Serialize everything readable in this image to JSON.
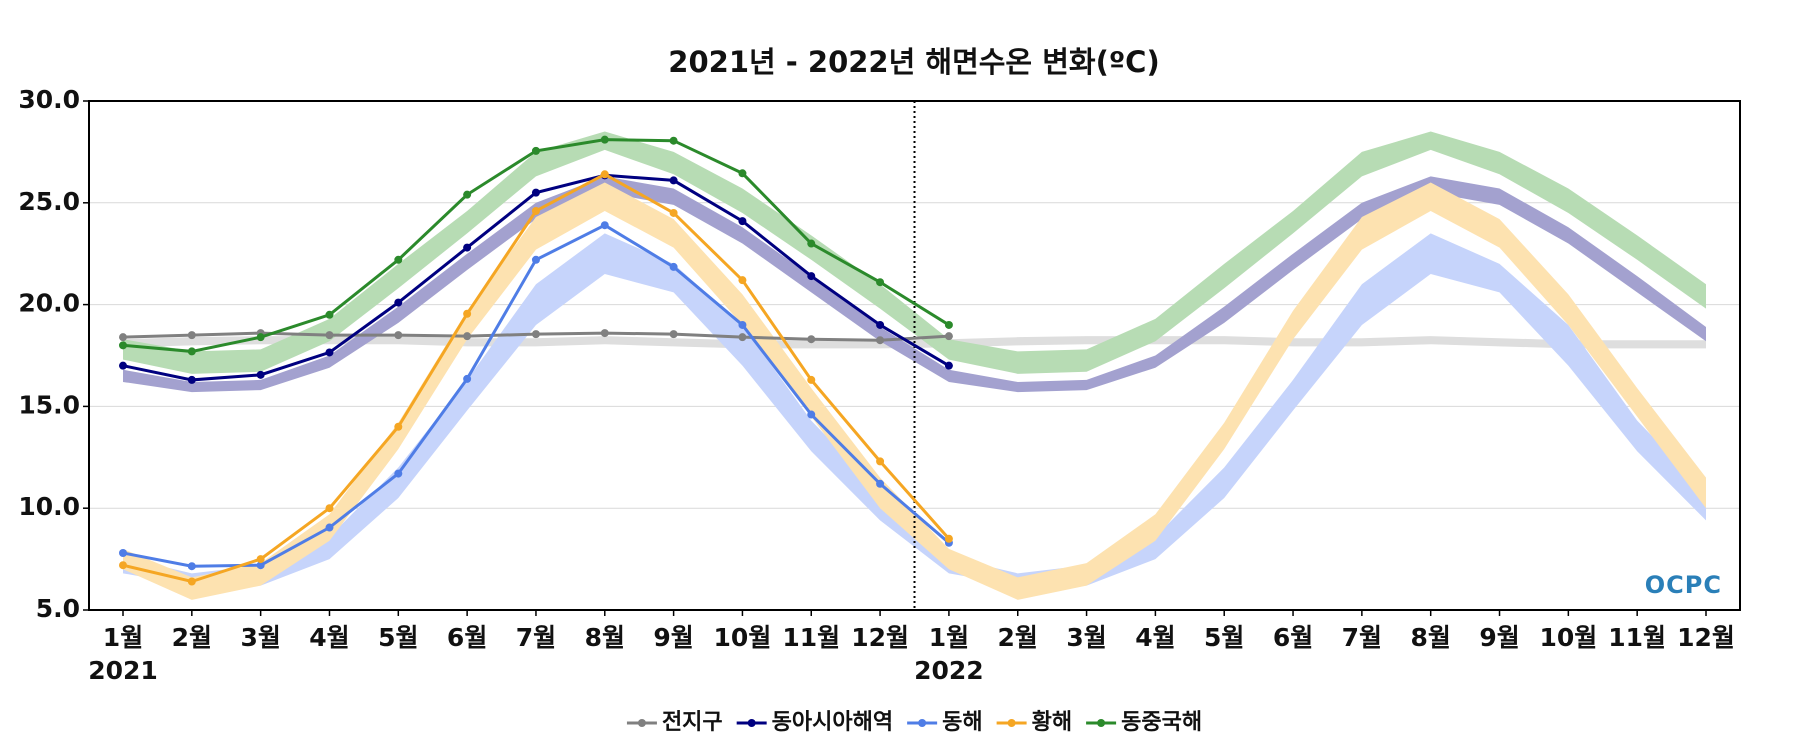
{
  "chart_data": {
    "type": "line",
    "title": "2021년 - 2022년 해면수온 변화(ºC)",
    "logo": "OCPC",
    "categories": [
      "1월",
      "2월",
      "3월",
      "4월",
      "5월",
      "6월",
      "7월",
      "8월",
      "9월",
      "10월",
      "11월",
      "12월",
      "1월",
      "2월",
      "3월",
      "4월",
      "5월",
      "6월",
      "7월",
      "8월",
      "9월",
      "10월",
      "11월",
      "12월"
    ],
    "years": [
      {
        "index": 0,
        "label": "2021"
      },
      {
        "index": 12,
        "label": "2022"
      }
    ],
    "ylim": [
      5,
      30
    ],
    "yticks": [
      {
        "value": 5,
        "label": "5.0"
      },
      {
        "value": 10,
        "label": "10.0"
      },
      {
        "value": 15,
        "label": "15.0"
      },
      {
        "value": 20,
        "label": "20.0"
      },
      {
        "value": 25,
        "label": "25.0"
      },
      {
        "value": 30,
        "label": "30.0"
      }
    ],
    "grid": true,
    "legend": "bottom",
    "series": [
      {
        "name": "전지구",
        "color": "#808080",
        "band_color": "#dedede",
        "values": [
          18.4,
          18.5,
          18.6,
          18.5,
          18.5,
          18.45,
          18.55,
          18.6,
          18.55,
          18.4,
          18.3,
          18.25,
          18.45,
          null,
          null,
          null,
          null,
          null,
          null,
          null,
          null,
          null,
          null,
          null
        ],
        "band_low": [
          17.9,
          18.0,
          18.05,
          18.05,
          18.05,
          17.95,
          17.95,
          18.05,
          17.95,
          17.85,
          17.85,
          17.85,
          17.9,
          18.0,
          18.05,
          18.05,
          18.05,
          17.95,
          17.95,
          18.05,
          17.95,
          17.85,
          17.85,
          17.85
        ],
        "band_high": [
          18.3,
          18.4,
          18.45,
          18.45,
          18.45,
          18.35,
          18.35,
          18.45,
          18.35,
          18.25,
          18.25,
          18.25,
          18.3,
          18.4,
          18.45,
          18.45,
          18.45,
          18.35,
          18.35,
          18.45,
          18.35,
          18.25,
          18.25,
          18.25
        ]
      },
      {
        "name": "동아시아해역",
        "color": "#000080",
        "band_color": "#a3a1cf",
        "values": [
          17.0,
          16.3,
          16.55,
          17.65,
          20.1,
          22.8,
          25.5,
          26.35,
          26.1,
          24.1,
          21.4,
          19.0,
          17.0,
          null,
          null,
          null,
          null,
          null,
          null,
          null,
          null,
          null,
          null,
          null
        ],
        "band_low": [
          16.2,
          15.7,
          15.8,
          16.9,
          19.1,
          21.7,
          24.2,
          25.5,
          24.9,
          23.0,
          20.6,
          18.2,
          16.2,
          15.7,
          15.8,
          16.9,
          19.1,
          21.7,
          24.2,
          25.5,
          24.9,
          23.0,
          20.6,
          18.2
        ],
        "band_high": [
          16.8,
          16.2,
          16.3,
          17.5,
          19.9,
          22.5,
          25.0,
          26.3,
          25.7,
          23.8,
          21.4,
          18.9,
          16.8,
          16.2,
          16.3,
          17.5,
          19.9,
          22.5,
          25.0,
          26.3,
          25.7,
          23.8,
          21.4,
          18.9
        ]
      },
      {
        "name": "동해",
        "color": "#4f7de6",
        "band_color": "#c6d4fb",
        "values": [
          7.8,
          7.15,
          7.2,
          9.05,
          11.7,
          16.35,
          22.2,
          23.9,
          21.85,
          19.0,
          14.6,
          11.2,
          8.3,
          null,
          null,
          null,
          null,
          null,
          null,
          null,
          null,
          null,
          null,
          null
        ],
        "band_low": [
          6.8,
          6.2,
          6.2,
          7.5,
          10.5,
          14.8,
          19.0,
          21.5,
          20.6,
          17.0,
          12.8,
          9.4,
          6.8,
          6.2,
          6.2,
          7.5,
          10.5,
          14.8,
          19.0,
          21.5,
          20.6,
          17.0,
          12.8,
          9.4
        ],
        "band_high": [
          7.6,
          6.8,
          7.2,
          8.6,
          12.0,
          16.3,
          21.0,
          23.5,
          22.0,
          19.0,
          14.3,
          10.8,
          7.6,
          6.8,
          7.2,
          8.6,
          12.0,
          16.3,
          21.0,
          23.5,
          22.0,
          19.0,
          14.3,
          10.8
        ]
      },
      {
        "name": "황해",
        "color": "#f5a623",
        "band_color": "#fde2b0",
        "values": [
          7.2,
          6.4,
          7.5,
          10.0,
          14.0,
          19.55,
          24.6,
          26.4,
          24.5,
          21.2,
          16.3,
          12.3,
          8.5,
          null,
          null,
          null,
          null,
          null,
          null,
          null,
          null,
          null,
          null,
          null
        ],
        "band_low": [
          7.0,
          5.5,
          6.2,
          8.4,
          12.9,
          18.3,
          22.7,
          24.6,
          22.8,
          19.0,
          14.5,
          10.0,
          7.0,
          5.5,
          6.2,
          8.4,
          12.9,
          18.3,
          22.7,
          24.6,
          22.8,
          19.0,
          14.5,
          10.0
        ],
        "band_high": [
          8.0,
          6.6,
          7.3,
          9.7,
          14.2,
          19.7,
          24.3,
          26.0,
          24.2,
          20.5,
          15.9,
          11.5,
          8.0,
          6.6,
          7.3,
          9.7,
          14.2,
          19.7,
          24.3,
          26.0,
          24.2,
          20.5,
          15.9,
          11.5
        ]
      },
      {
        "name": "동중국해",
        "color": "#2b8a2b",
        "band_color": "#b7dcb4",
        "values": [
          18.0,
          17.7,
          18.4,
          19.5,
          22.2,
          25.4,
          27.55,
          28.1,
          28.05,
          26.45,
          23.0,
          21.1,
          19.0,
          null,
          null,
          null,
          null,
          null,
          null,
          null,
          null,
          null,
          null,
          null
        ],
        "band_low": [
          17.3,
          16.6,
          16.7,
          18.2,
          20.8,
          23.5,
          26.3,
          27.6,
          26.4,
          24.5,
          22.2,
          19.8,
          17.3,
          16.6,
          16.7,
          18.2,
          20.8,
          23.5,
          26.3,
          27.6,
          26.4,
          24.5,
          22.2,
          19.8
        ],
        "band_high": [
          18.3,
          17.7,
          17.8,
          19.3,
          22.0,
          24.6,
          27.5,
          28.5,
          27.5,
          25.7,
          23.4,
          21.0,
          18.3,
          17.7,
          17.8,
          19.3,
          22.0,
          24.6,
          27.5,
          28.5,
          27.5,
          25.7,
          23.4,
          21.0
        ]
      }
    ]
  }
}
